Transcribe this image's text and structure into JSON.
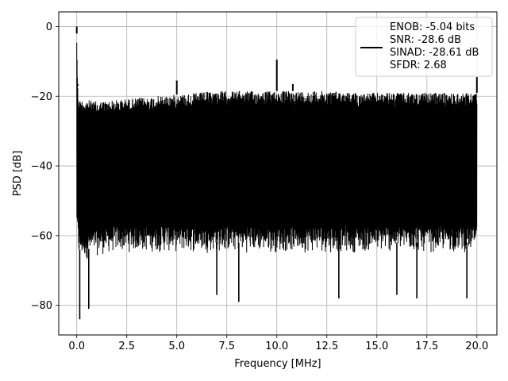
{
  "chart_data": {
    "type": "line",
    "title": "",
    "xlabel": "Frequency [MHz]",
    "ylabel": "PSD [dB]",
    "xlim": [
      -0.9,
      21.0
    ],
    "ylim": [
      -88.5,
      4.2
    ],
    "xticks": [
      0.0,
      2.5,
      5.0,
      7.5,
      10.0,
      12.5,
      15.0,
      17.5,
      20.0
    ],
    "xtick_labels": [
      "0.0",
      "2.5",
      "5.0",
      "7.5",
      "10.0",
      "12.5",
      "15.0",
      "17.5",
      "20.0"
    ],
    "yticks": [
      0,
      -20,
      -40,
      -60,
      -80
    ],
    "ytick_labels": [
      "0",
      "−20",
      "−40",
      "−60",
      "−80"
    ],
    "grid": true,
    "legend_position": "top-right",
    "series": [
      {
        "name": "ENOB: -5.04 bits\nSNR: -28.6 dB\nSINAD: -28.61 dB\nSFDR: 2.68",
        "color": "#000000",
        "description": "noise floor spectrum, 0–20 MHz",
        "envelope": {
          "x": [
            0.0,
            0.05,
            0.1,
            0.5,
            1.0,
            2.0,
            3.0,
            4.0,
            5.0,
            6.0,
            7.0,
            8.0,
            9.0,
            10.0,
            11.0,
            12.0,
            13.0,
            14.0,
            15.0,
            16.0,
            17.0,
            18.0,
            19.0,
            20.0
          ],
          "upper": [
            -2,
            -17,
            -21,
            -21,
            -21.5,
            -21,
            -20.5,
            -20,
            -19.5,
            -19,
            -18.5,
            -18.5,
            -18.5,
            -18.5,
            -18.5,
            -18.5,
            -18.5,
            -19,
            -19,
            -19,
            -19,
            -19,
            -19,
            -19
          ],
          "lower": [
            -55,
            -60,
            -64,
            -64,
            -63,
            -62,
            -62,
            -62,
            -62,
            -62,
            -62,
            -62,
            -62,
            -62,
            -62,
            -62,
            -62,
            -62,
            -62,
            -62,
            -62,
            -62,
            -62,
            -62
          ]
        },
        "peaks": [
          {
            "x": 0.0,
            "y": 0.0
          },
          {
            "x": 0.05,
            "y": -16.5
          },
          {
            "x": 5.0,
            "y": -15.5
          },
          {
            "x": 10.0,
            "y": -9.5
          },
          {
            "x": 10.8,
            "y": -16.5
          },
          {
            "x": 20.0,
            "y": -14.5
          }
        ],
        "dips": [
          {
            "x": 0.15,
            "y": -84
          },
          {
            "x": 0.6,
            "y": -81
          },
          {
            "x": 7.0,
            "y": -77
          },
          {
            "x": 8.1,
            "y": -79
          },
          {
            "x": 13.1,
            "y": -78
          },
          {
            "x": 16.0,
            "y": -77
          },
          {
            "x": 17.0,
            "y": -78
          },
          {
            "x": 19.5,
            "y": -78
          }
        ]
      }
    ]
  }
}
